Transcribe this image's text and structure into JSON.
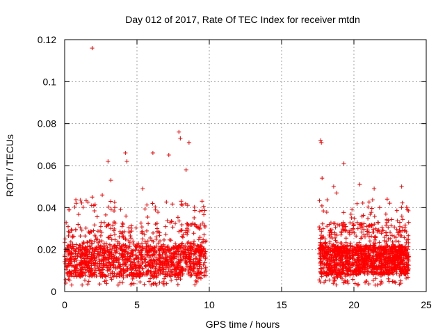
{
  "chart_data": {
    "type": "scatter",
    "title": "Day 012 of 2017, Rate Of TEC Index for receiver mtdn",
    "xlabel": "GPS time / hours",
    "ylabel": "ROTI / TECUs",
    "xlim": [
      0,
      25
    ],
    "ylim": [
      0,
      0.12
    ],
    "grid": true,
    "marker": "+",
    "color": "#ff0000",
    "x_ticks": [
      0,
      5,
      10,
      15,
      20,
      25
    ],
    "x_tick_labels": [
      "0",
      "5",
      "10",
      "15",
      "20",
      "25"
    ],
    "y_ticks": [
      0,
      0.02,
      0.04,
      0.06,
      0.08,
      0.1,
      0.12
    ],
    "y_tick_labels": [
      "0",
      "0.02",
      "0.04",
      "0.06",
      "0.08",
      "0.1",
      "0.12"
    ],
    "series": [
      {
        "name": "ROTI",
        "segments": [
          {
            "x_range": [
              0.0,
              9.8
            ],
            "typical_low": 0.007,
            "typical_high": 0.022
          },
          {
            "x_range": [
              17.6,
              23.8
            ],
            "typical_low": 0.008,
            "typical_high": 0.022
          }
        ],
        "points": [
          {
            "x": 1.9,
            "y": 0.116
          },
          {
            "x": 7.9,
            "y": 0.076
          },
          {
            "x": 8.0,
            "y": 0.073
          },
          {
            "x": 8.6,
            "y": 0.071
          },
          {
            "x": 7.2,
            "y": 0.065
          },
          {
            "x": 6.1,
            "y": 0.066
          },
          {
            "x": 4.2,
            "y": 0.066
          },
          {
            "x": 4.3,
            "y": 0.062
          },
          {
            "x": 3.0,
            "y": 0.062
          },
          {
            "x": 8.4,
            "y": 0.058
          },
          {
            "x": 3.2,
            "y": 0.053
          },
          {
            "x": 5.4,
            "y": 0.049
          },
          {
            "x": 1.9,
            "y": 0.045
          },
          {
            "x": 0.8,
            "y": 0.042
          },
          {
            "x": 2.6,
            "y": 0.046
          },
          {
            "x": 9.5,
            "y": 0.043
          },
          {
            "x": 17.7,
            "y": 0.072
          },
          {
            "x": 17.75,
            "y": 0.071
          },
          {
            "x": 19.3,
            "y": 0.061
          },
          {
            "x": 17.8,
            "y": 0.054
          },
          {
            "x": 18.6,
            "y": 0.05
          },
          {
            "x": 18.8,
            "y": 0.047
          },
          {
            "x": 20.4,
            "y": 0.051
          },
          {
            "x": 21.4,
            "y": 0.049
          },
          {
            "x": 23.3,
            "y": 0.05
          },
          {
            "x": 22.3,
            "y": 0.044
          },
          {
            "x": 23.7,
            "y": 0.039
          }
        ]
      }
    ]
  }
}
